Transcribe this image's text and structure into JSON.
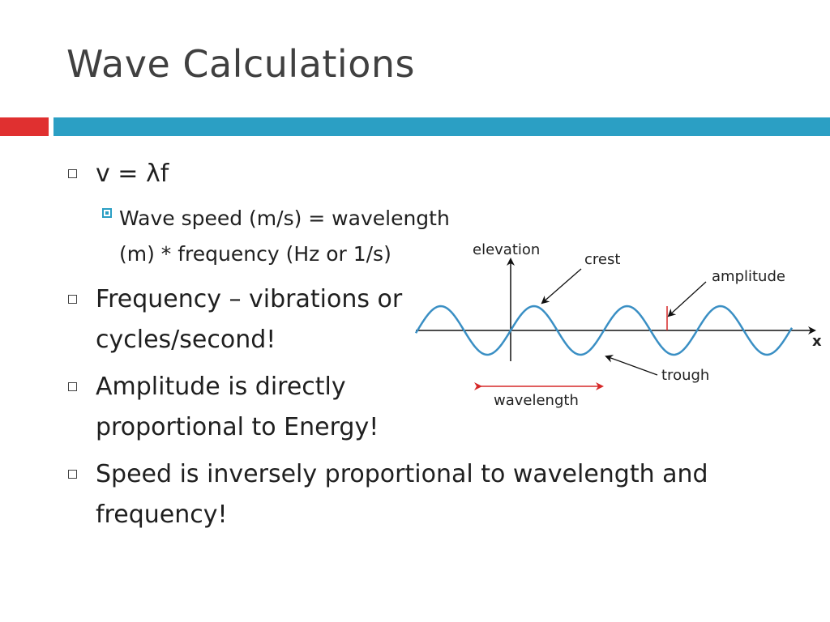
{
  "slide": {
    "title": "Wave Calculations",
    "colors": {
      "title": "#404040",
      "accent_red": "#e03030",
      "accent_blue": "#2b9fc4",
      "wave": "#3a8fc4",
      "arrow_red": "#d62828"
    }
  },
  "bullets": [
    {
      "text": "v = λf",
      "sub": [
        {
          "text": "Wave speed (m/s) = wavelength (m) * frequency (Hz or 1/s)"
        }
      ]
    },
    {
      "text": "Frequency – vibrations or cycles/second!"
    },
    {
      "text": "Amplitude is directly proportional to Energy!"
    },
    {
      "text": "Speed is inversely proportional to wavelength and frequency!"
    }
  ],
  "diagram": {
    "labels": {
      "elevation": "elevation",
      "crest": "crest",
      "amplitude": "amplitude",
      "x_axis": "x",
      "trough": "trough",
      "wavelength": "wavelength"
    }
  }
}
